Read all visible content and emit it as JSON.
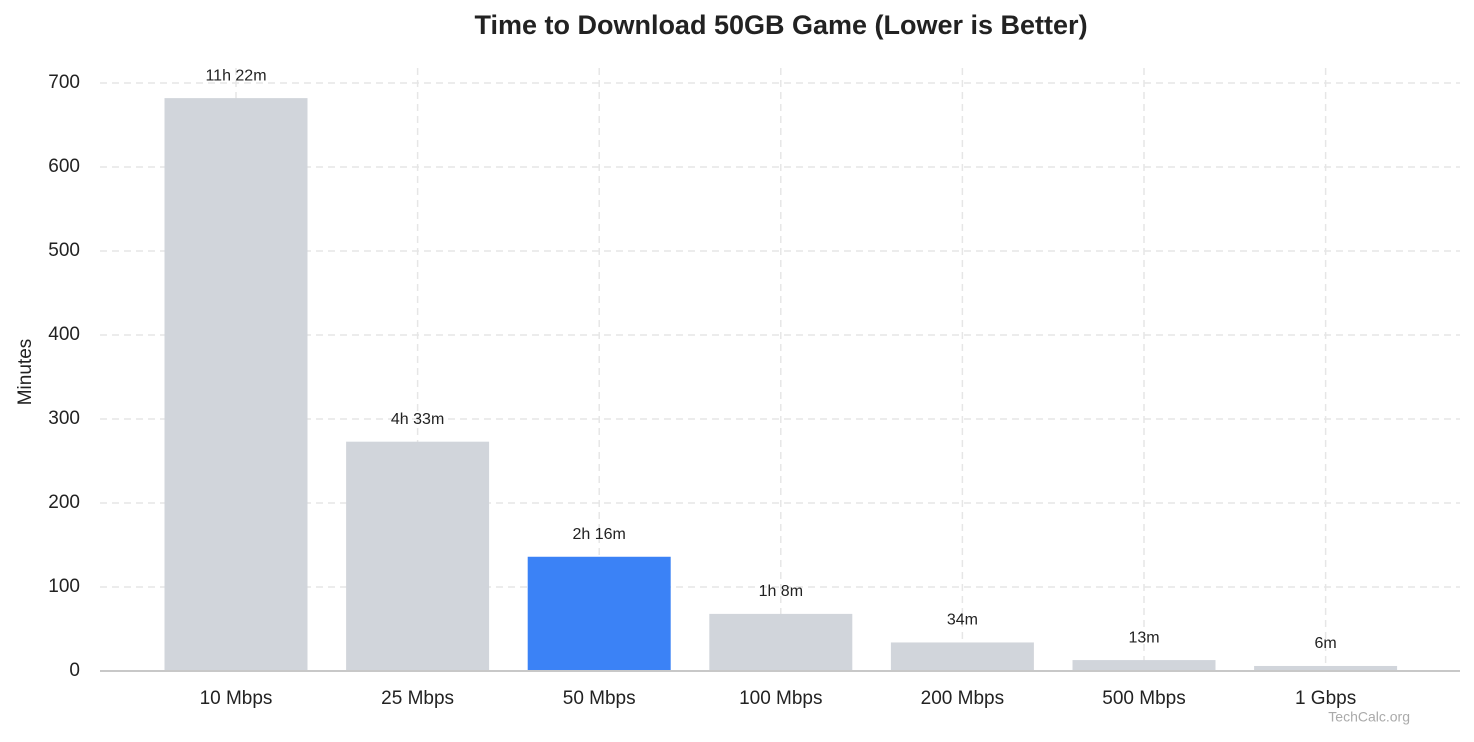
{
  "chart_data": {
    "type": "bar",
    "title": "Time to Download 50GB Game (Lower is Better)",
    "y_label": "Minutes",
    "categories": [
      "10 Mbps",
      "25 Mbps",
      "50 Mbps",
      "100 Mbps",
      "200 Mbps",
      "500 Mbps",
      "1 Gbps"
    ],
    "values": [
      682,
      273,
      136,
      68,
      34,
      13,
      6
    ],
    "value_labels": [
      "11h 22m",
      "4h 33m",
      "2h 16m",
      "1h 8m",
      "34m",
      "13m",
      "6m"
    ],
    "colors": [
      "#d1d5db",
      "#d1d5db",
      "#3b82f6",
      "#d1d5db",
      "#d1d5db",
      "#d1d5db",
      "#d1d5db"
    ],
    "ylim": [
      0,
      700
    ],
    "yticks": [
      0,
      100,
      200,
      300,
      400,
      500,
      600,
      700
    ],
    "grid": true,
    "watermark": "TechCalc.org"
  }
}
